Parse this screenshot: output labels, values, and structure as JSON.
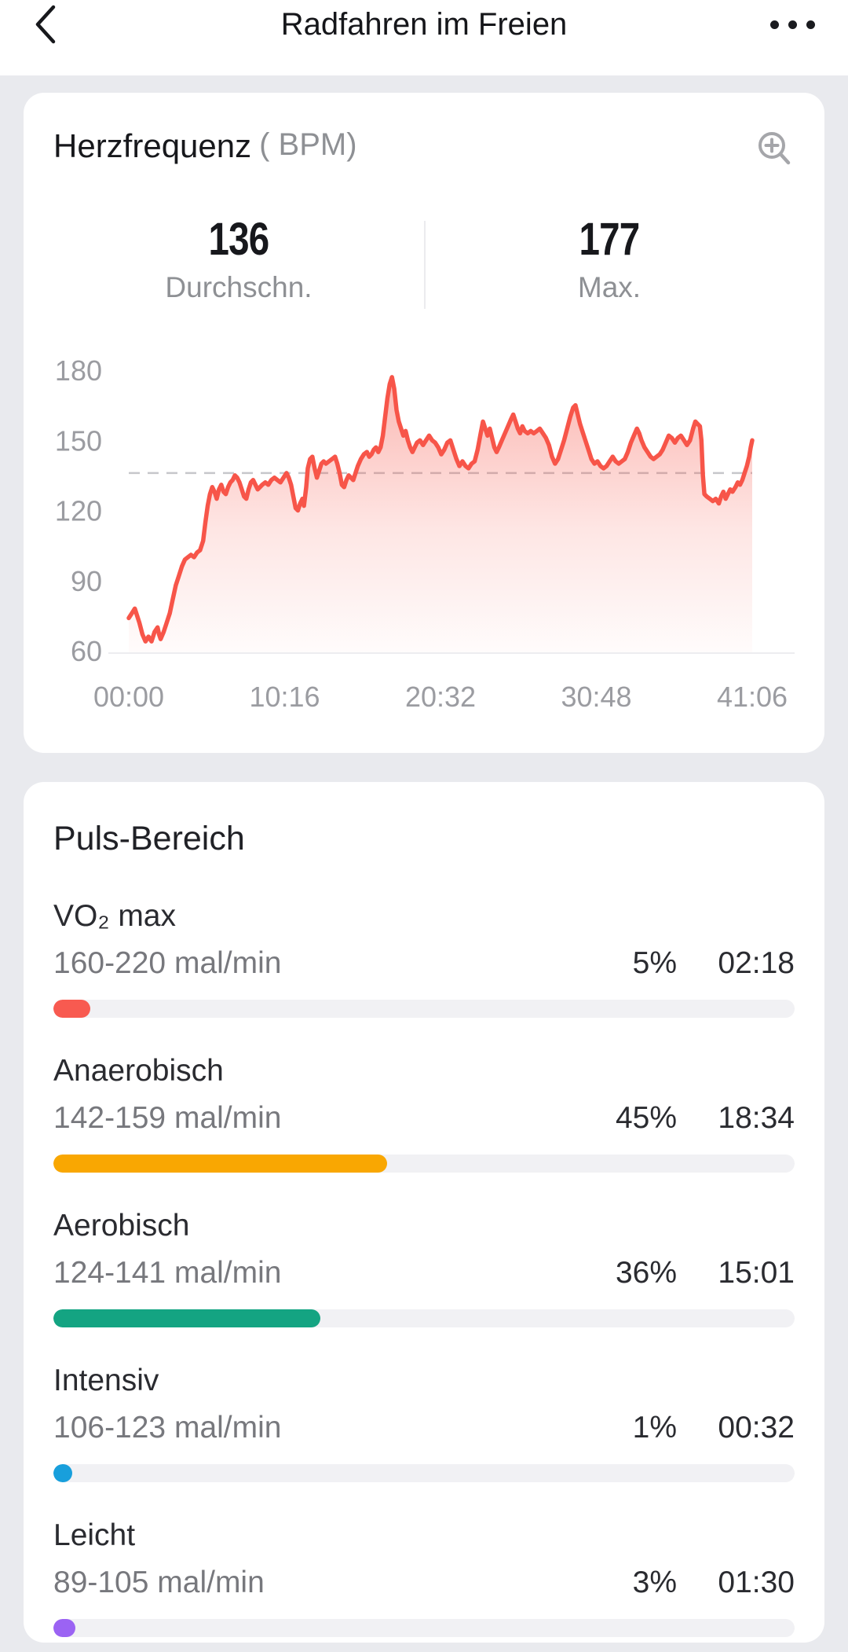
{
  "header": {
    "title": "Radfahren im Freien"
  },
  "heart_rate_card": {
    "title": "Herzfrequenz",
    "unit_label": "( BPM)",
    "stats": [
      {
        "value": "136",
        "label": "Durchschn."
      },
      {
        "value": "177",
        "label": "Max."
      }
    ]
  },
  "chart_data": {
    "type": "area",
    "title": "Herzfrequenz (BPM)",
    "line_color": "#f75549",
    "average_line": 136,
    "ylim": [
      60,
      185
    ],
    "xlim_minutes": [
      0,
      41.1
    ],
    "y_ticks": [
      "180",
      "150",
      "120",
      "90",
      "60"
    ],
    "y_tick_values": [
      180,
      150,
      120,
      90,
      60
    ],
    "x_ticks": [
      "00:00",
      "10:16",
      "20:32",
      "30:48",
      "41:06"
    ],
    "series": [
      {
        "name": "Herzfrequenz",
        "points": [
          [
            0,
            74
          ],
          [
            0.2,
            76
          ],
          [
            0.4,
            78
          ],
          [
            0.55,
            75
          ],
          [
            0.7,
            72
          ],
          [
            0.9,
            67
          ],
          [
            1.1,
            64
          ],
          [
            1.3,
            66
          ],
          [
            1.5,
            64
          ],
          [
            1.7,
            68
          ],
          [
            1.9,
            70
          ],
          [
            2.0,
            67
          ],
          [
            2.1,
            65
          ],
          [
            2.3,
            68
          ],
          [
            2.5,
            72
          ],
          [
            2.7,
            76
          ],
          [
            2.9,
            82
          ],
          [
            3.1,
            88
          ],
          [
            3.3,
            92
          ],
          [
            3.5,
            96
          ],
          [
            3.7,
            99
          ],
          [
            3.9,
            100
          ],
          [
            4.1,
            101
          ],
          [
            4.3,
            100
          ],
          [
            4.5,
            102
          ],
          [
            4.7,
            103
          ],
          [
            4.9,
            107
          ],
          [
            5.05,
            115
          ],
          [
            5.2,
            122
          ],
          [
            5.35,
            127
          ],
          [
            5.5,
            130
          ],
          [
            5.65,
            128
          ],
          [
            5.8,
            125
          ],
          [
            5.95,
            129
          ],
          [
            6.1,
            131
          ],
          [
            6.25,
            128
          ],
          [
            6.4,
            127
          ],
          [
            6.55,
            130
          ],
          [
            6.7,
            132
          ],
          [
            6.85,
            133
          ],
          [
            7.0,
            135
          ],
          [
            7.15,
            134
          ],
          [
            7.3,
            132
          ],
          [
            7.45,
            129
          ],
          [
            7.6,
            126
          ],
          [
            7.75,
            125
          ],
          [
            7.9,
            129
          ],
          [
            8.05,
            132
          ],
          [
            8.2,
            133
          ],
          [
            8.35,
            131
          ],
          [
            8.5,
            129
          ],
          [
            8.65,
            130
          ],
          [
            8.8,
            131
          ],
          [
            9.0,
            132
          ],
          [
            9.2,
            131
          ],
          [
            9.4,
            133
          ],
          [
            9.6,
            134
          ],
          [
            9.8,
            133
          ],
          [
            10.0,
            132
          ],
          [
            10.2,
            134
          ],
          [
            10.4,
            136
          ],
          [
            10.55,
            134
          ],
          [
            10.7,
            131
          ],
          [
            10.85,
            126
          ],
          [
            11.0,
            121
          ],
          [
            11.15,
            120
          ],
          [
            11.3,
            123
          ],
          [
            11.45,
            125
          ],
          [
            11.55,
            122
          ],
          [
            11.7,
            130
          ],
          [
            11.8,
            138
          ],
          [
            11.95,
            142
          ],
          [
            12.1,
            143
          ],
          [
            12.25,
            138
          ],
          [
            12.4,
            134
          ],
          [
            12.55,
            137
          ],
          [
            12.7,
            140
          ],
          [
            12.85,
            141
          ],
          [
            13.0,
            140
          ],
          [
            13.2,
            141
          ],
          [
            13.4,
            142
          ],
          [
            13.6,
            143
          ],
          [
            13.75,
            140
          ],
          [
            13.9,
            136
          ],
          [
            14.05,
            131
          ],
          [
            14.2,
            130
          ],
          [
            14.35,
            133
          ],
          [
            14.5,
            135
          ],
          [
            14.65,
            134
          ],
          [
            14.8,
            133
          ],
          [
            14.95,
            136
          ],
          [
            15.1,
            139
          ],
          [
            15.3,
            142
          ],
          [
            15.5,
            144
          ],
          [
            15.7,
            145
          ],
          [
            15.85,
            143
          ],
          [
            16.0,
            144
          ],
          [
            16.15,
            146
          ],
          [
            16.3,
            147
          ],
          [
            16.45,
            145
          ],
          [
            16.6,
            147
          ],
          [
            16.75,
            152
          ],
          [
            16.9,
            160
          ],
          [
            17.05,
            168
          ],
          [
            17.2,
            174
          ],
          [
            17.35,
            177
          ],
          [
            17.5,
            172
          ],
          [
            17.65,
            163
          ],
          [
            17.8,
            158
          ],
          [
            17.95,
            155
          ],
          [
            18.1,
            152
          ],
          [
            18.25,
            154
          ],
          [
            18.4,
            150
          ],
          [
            18.55,
            147
          ],
          [
            18.7,
            145
          ],
          [
            18.85,
            147
          ],
          [
            19.0,
            149
          ],
          [
            19.2,
            150
          ],
          [
            19.4,
            148
          ],
          [
            19.6,
            150
          ],
          [
            19.8,
            152
          ],
          [
            20.0,
            150
          ],
          [
            20.2,
            149
          ],
          [
            20.4,
            147
          ],
          [
            20.6,
            144
          ],
          [
            20.8,
            146
          ],
          [
            21.0,
            149
          ],
          [
            21.2,
            150
          ],
          [
            21.4,
            146
          ],
          [
            21.6,
            142
          ],
          [
            21.8,
            139
          ],
          [
            22.0,
            141
          ],
          [
            22.2,
            139
          ],
          [
            22.4,
            138
          ],
          [
            22.6,
            140
          ],
          [
            22.8,
            141
          ],
          [
            23.0,
            146
          ],
          [
            23.2,
            153
          ],
          [
            23.35,
            158
          ],
          [
            23.5,
            155
          ],
          [
            23.65,
            152
          ],
          [
            23.8,
            155
          ],
          [
            23.95,
            151
          ],
          [
            24.1,
            147
          ],
          [
            24.25,
            145
          ],
          [
            24.4,
            147
          ],
          [
            24.6,
            150
          ],
          [
            24.8,
            153
          ],
          [
            25.0,
            156
          ],
          [
            25.2,
            159
          ],
          [
            25.35,
            161
          ],
          [
            25.5,
            158
          ],
          [
            25.65,
            155
          ],
          [
            25.8,
            153
          ],
          [
            25.95,
            156
          ],
          [
            26.1,
            154
          ],
          [
            26.3,
            153
          ],
          [
            26.5,
            154
          ],
          [
            26.7,
            153
          ],
          [
            26.9,
            154
          ],
          [
            27.1,
            155
          ],
          [
            27.3,
            153
          ],
          [
            27.5,
            151
          ],
          [
            27.7,
            148
          ],
          [
            27.9,
            143
          ],
          [
            28.1,
            140
          ],
          [
            28.3,
            142
          ],
          [
            28.5,
            146
          ],
          [
            28.7,
            150
          ],
          [
            28.9,
            155
          ],
          [
            29.1,
            160
          ],
          [
            29.3,
            164
          ],
          [
            29.45,
            165
          ],
          [
            29.6,
            161
          ],
          [
            29.75,
            157
          ],
          [
            29.9,
            154
          ],
          [
            30.1,
            150
          ],
          [
            30.3,
            146
          ],
          [
            30.5,
            142
          ],
          [
            30.7,
            140
          ],
          [
            30.9,
            141
          ],
          [
            31.1,
            139
          ],
          [
            31.3,
            138
          ],
          [
            31.5,
            139
          ],
          [
            31.7,
            141
          ],
          [
            31.9,
            143
          ],
          [
            32.1,
            141
          ],
          [
            32.3,
            140
          ],
          [
            32.5,
            141
          ],
          [
            32.7,
            142
          ],
          [
            32.9,
            145
          ],
          [
            33.1,
            149
          ],
          [
            33.3,
            152
          ],
          [
            33.5,
            155
          ],
          [
            33.65,
            153
          ],
          [
            33.8,
            150
          ],
          [
            34.0,
            147
          ],
          [
            34.2,
            145
          ],
          [
            34.4,
            143
          ],
          [
            34.6,
            142
          ],
          [
            34.8,
            143
          ],
          [
            35.0,
            144
          ],
          [
            35.2,
            146
          ],
          [
            35.4,
            149
          ],
          [
            35.6,
            152
          ],
          [
            35.8,
            151
          ],
          [
            36.0,
            149
          ],
          [
            36.2,
            151
          ],
          [
            36.4,
            152
          ],
          [
            36.6,
            150
          ],
          [
            36.8,
            148
          ],
          [
            37.0,
            150
          ],
          [
            37.2,
            155
          ],
          [
            37.35,
            158
          ],
          [
            37.5,
            157
          ],
          [
            37.65,
            156
          ],
          [
            37.75,
            150
          ],
          [
            37.85,
            135
          ],
          [
            37.95,
            127
          ],
          [
            38.1,
            126
          ],
          [
            38.3,
            125
          ],
          [
            38.5,
            124
          ],
          [
            38.7,
            125
          ],
          [
            38.9,
            123
          ],
          [
            39.05,
            126
          ],
          [
            39.2,
            128
          ],
          [
            39.35,
            125
          ],
          [
            39.5,
            127
          ],
          [
            39.65,
            129
          ],
          [
            39.8,
            128
          ],
          [
            40.0,
            130
          ],
          [
            40.15,
            132
          ],
          [
            40.3,
            131
          ],
          [
            40.45,
            133
          ],
          [
            40.6,
            136
          ],
          [
            40.75,
            139
          ],
          [
            40.9,
            143
          ],
          [
            41.0,
            147
          ],
          [
            41.1,
            150
          ]
        ]
      }
    ]
  },
  "pulse_zones_card": {
    "title": "Puls-Bereich",
    "zones": [
      {
        "name": "VO₂ max",
        "range": "160-220 mal/min",
        "percent": "5%",
        "time": "02:18",
        "percent_value": 5,
        "color": "#f85a50"
      },
      {
        "name": "Anaerobisch",
        "range": "142-159 mal/min",
        "percent": "45%",
        "time": "18:34",
        "percent_value": 45,
        "color": "#f9a702"
      },
      {
        "name": "Aerobisch",
        "range": "124-141 mal/min",
        "percent": "36%",
        "time": "15:01",
        "percent_value": 36,
        "color": "#14a482"
      },
      {
        "name": "Intensiv",
        "range": "106-123 mal/min",
        "percent": "1%",
        "time": "00:32",
        "percent_value": 1,
        "color": "#189fdc"
      },
      {
        "name": "Leicht",
        "range": "89-105 mal/min",
        "percent": "3%",
        "time": "01:30",
        "percent_value": 3,
        "color": "#9b63f3"
      }
    ]
  },
  "colors": {
    "page_background": "#e9eaee",
    "card_background": "#ffffff",
    "chart_line": "#f75549",
    "average_dash": "#c6c7cb",
    "axis_label": "#9b9ca1",
    "bar_track": "#f1f1f4"
  }
}
